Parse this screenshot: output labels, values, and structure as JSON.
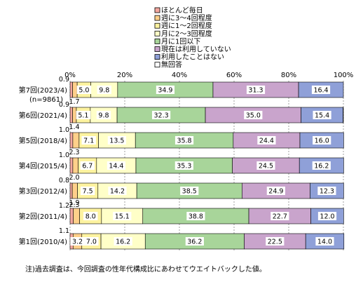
{
  "chart_data": {
    "type": "bar",
    "orientation": "horizontal",
    "stacked": true,
    "percent": true,
    "xlim": [
      0,
      100
    ],
    "x_ticks": [
      "0%",
      "20%",
      "40%",
      "60%",
      "80%",
      "100%"
    ],
    "grid": true,
    "legend_position": "top-right",
    "categories": [
      "第7回(2023/4)",
      "第6回(2021/4)",
      "第5回(2018/4)",
      "第4回(2015/4)",
      "第3回(2012/4)",
      "第2回(2011/4)",
      "第1回(2010/4)"
    ],
    "category_note": "(n=9861)",
    "series": [
      {
        "name": "ほとんど毎日",
        "color": "#f4a8a0",
        "values": [
          0.9,
          0.9,
          1.0,
          1.0,
          0.8,
          1.2,
          1.1
        ]
      },
      {
        "name": "週に3～4回程度",
        "color": "#ffd08a",
        "values": [
          1.7,
          1.4,
          2.3,
          2.0,
          1.9,
          2.3,
          3.2
        ]
      },
      {
        "name": "週に1～2回程度",
        "color": "#fdf3a0",
        "values": [
          5.0,
          5.1,
          7.1,
          6.7,
          7.5,
          8.0,
          7.0
        ]
      },
      {
        "name": "月に2～3回程度",
        "color": "#ffffc8",
        "values": [
          9.8,
          9.8,
          13.5,
          14.4,
          14.2,
          15.1,
          16.2
        ]
      },
      {
        "name": "月に1回以下",
        "color": "#a8d59a",
        "values": [
          34.9,
          32.3,
          35.8,
          35.3,
          38.5,
          38.8,
          36.2
        ]
      },
      {
        "name": "現在は利用していない",
        "color": "#c9a4cc",
        "values": [
          31.3,
          35.0,
          24.4,
          24.5,
          24.9,
          22.7,
          22.5
        ]
      },
      {
        "name": "利用したことはない",
        "color": "#8fa0d8",
        "values": [
          16.4,
          15.4,
          16.0,
          16.2,
          12.3,
          12.0,
          14.0
        ]
      },
      {
        "name": "無回答",
        "color": "#ffffff",
        "values": [
          0,
          0,
          0,
          0,
          0,
          0,
          0
        ]
      }
    ],
    "labels": [
      {
        "row": 0,
        "series": 0,
        "text": "0.9",
        "pos": "above"
      },
      {
        "row": 0,
        "series": 1,
        "text": "1.7",
        "pos": "below"
      },
      {
        "row": 0,
        "series": 2,
        "text": "5.0",
        "pos": "inside"
      },
      {
        "row": 0,
        "series": 3,
        "text": "9.8",
        "pos": "inside"
      },
      {
        "row": 0,
        "series": 4,
        "text": "34.9",
        "pos": "inside"
      },
      {
        "row": 0,
        "series": 5,
        "text": "31.3",
        "pos": "inside"
      },
      {
        "row": 0,
        "series": 6,
        "text": "16.4",
        "pos": "inside"
      },
      {
        "row": 1,
        "series": 0,
        "text": "0.9",
        "pos": "above"
      },
      {
        "row": 1,
        "series": 1,
        "text": "1.4",
        "pos": "below"
      },
      {
        "row": 1,
        "series": 2,
        "text": "5.1",
        "pos": "inside"
      },
      {
        "row": 1,
        "series": 3,
        "text": "9.8",
        "pos": "inside"
      },
      {
        "row": 1,
        "series": 4,
        "text": "32.3",
        "pos": "inside"
      },
      {
        "row": 1,
        "series": 5,
        "text": "35.0",
        "pos": "inside"
      },
      {
        "row": 1,
        "series": 6,
        "text": "15.4",
        "pos": "inside"
      },
      {
        "row": 2,
        "series": 0,
        "text": "1.0",
        "pos": "above"
      },
      {
        "row": 2,
        "series": 1,
        "text": "2.3",
        "pos": "below"
      },
      {
        "row": 2,
        "series": 2,
        "text": "7.1",
        "pos": "inside"
      },
      {
        "row": 2,
        "series": 3,
        "text": "13.5",
        "pos": "inside"
      },
      {
        "row": 2,
        "series": 4,
        "text": "35.8",
        "pos": "inside"
      },
      {
        "row": 2,
        "series": 5,
        "text": "24.4",
        "pos": "inside"
      },
      {
        "row": 2,
        "series": 6,
        "text": "16.0",
        "pos": "inside"
      },
      {
        "row": 3,
        "series": 0,
        "text": "1.0",
        "pos": "above"
      },
      {
        "row": 3,
        "series": 1,
        "text": "2.0",
        "pos": "below"
      },
      {
        "row": 3,
        "series": 2,
        "text": "6.7",
        "pos": "inside"
      },
      {
        "row": 3,
        "series": 3,
        "text": "14.4",
        "pos": "inside"
      },
      {
        "row": 3,
        "series": 4,
        "text": "35.3",
        "pos": "inside"
      },
      {
        "row": 3,
        "series": 5,
        "text": "24.5",
        "pos": "inside"
      },
      {
        "row": 3,
        "series": 6,
        "text": "16.2",
        "pos": "inside"
      },
      {
        "row": 4,
        "series": 0,
        "text": "0.8",
        "pos": "above"
      },
      {
        "row": 4,
        "series": 1,
        "text": "1.9",
        "pos": "below"
      },
      {
        "row": 4,
        "series": 2,
        "text": "7.5",
        "pos": "inside"
      },
      {
        "row": 4,
        "series": 3,
        "text": "14.2",
        "pos": "inside"
      },
      {
        "row": 4,
        "series": 4,
        "text": "38.5",
        "pos": "inside"
      },
      {
        "row": 4,
        "series": 5,
        "text": "24.9",
        "pos": "inside"
      },
      {
        "row": 4,
        "series": 6,
        "text": "12.3",
        "pos": "inside"
      },
      {
        "row": 5,
        "series": 0,
        "text": "1.2",
        "pos": "above"
      },
      {
        "row": 5,
        "series": 1,
        "text": "2.3",
        "pos": "above-right"
      },
      {
        "row": 5,
        "series": 2,
        "text": "8.0",
        "pos": "inside"
      },
      {
        "row": 5,
        "series": 3,
        "text": "15.1",
        "pos": "inside"
      },
      {
        "row": 5,
        "series": 4,
        "text": "38.8",
        "pos": "inside"
      },
      {
        "row": 5,
        "series": 5,
        "text": "22.7",
        "pos": "inside"
      },
      {
        "row": 5,
        "series": 6,
        "text": "12.0",
        "pos": "inside"
      },
      {
        "row": 6,
        "series": 0,
        "text": "1.1",
        "pos": "above"
      },
      {
        "row": 6,
        "series": 1,
        "text": "3.2",
        "pos": "inside"
      },
      {
        "row": 6,
        "series": 2,
        "text": "7.0",
        "pos": "inside"
      },
      {
        "row": 6,
        "series": 3,
        "text": "16.2",
        "pos": "inside"
      },
      {
        "row": 6,
        "series": 4,
        "text": "36.2",
        "pos": "inside"
      },
      {
        "row": 6,
        "series": 5,
        "text": "22.5",
        "pos": "inside"
      },
      {
        "row": 6,
        "series": 6,
        "text": "14.0",
        "pos": "inside"
      }
    ],
    "footnote": "注)過去調査は、今回調査の性年代構成比にあわせてウエイトバックした値。"
  }
}
